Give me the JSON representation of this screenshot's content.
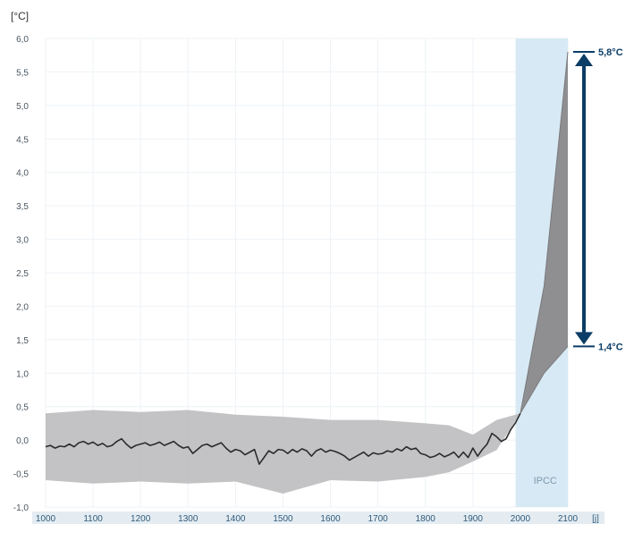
{
  "chart_data": {
    "type": "line",
    "title": "",
    "xlabel": "",
    "ylabel": "",
    "y_unit_label": "[°C]",
    "xlim": [
      1000,
      2100
    ],
    "ylim": [
      -1.0,
      6.0
    ],
    "x_ticks": [
      1000,
      1100,
      1200,
      1300,
      1400,
      1500,
      1600,
      1700,
      1800,
      1900,
      2000,
      2100
    ],
    "x_tick_labels": [
      "1000",
      "1100",
      "1200",
      "1300",
      "1400",
      "1500",
      "1600",
      "1700",
      "1800",
      "1900",
      "2000",
      "2100"
    ],
    "x_tail_label": "[j]",
    "y_ticks": [
      -1.0,
      -0.5,
      0.0,
      0.5,
      1.0,
      1.5,
      2.0,
      2.5,
      3.0,
      3.5,
      4.0,
      4.5,
      5.0,
      5.5,
      6.0
    ],
    "y_tick_labels": [
      "-1,0",
      "-0,5",
      "0,0",
      "0,5",
      "1,0",
      "1,5",
      "2,0",
      "2,5",
      "3,0",
      "3,5",
      "4,0",
      "4,5",
      "5,0",
      "5,5",
      "6,0"
    ],
    "grid": true,
    "shaded_region": {
      "x_start": 1990,
      "x_end": 2100,
      "label": "IPCC"
    },
    "series": [
      {
        "x": [
          1000,
          1010,
          1020,
          1030,
          1040,
          1050,
          1060,
          1070,
          1080,
          1090,
          1100,
          1110,
          1120,
          1130,
          1140,
          1150,
          1160,
          1170,
          1180,
          1190,
          1200,
          1210,
          1220,
          1230,
          1240,
          1250,
          1260,
          1270,
          1280,
          1290,
          1300,
          1310,
          1320,
          1330,
          1340,
          1350,
          1360,
          1370,
          1380,
          1390,
          1400,
          1410,
          1420,
          1430,
          1440,
          1450,
          1460,
          1470,
          1480,
          1490,
          1500,
          1510,
          1520,
          1530,
          1540,
          1550,
          1560,
          1570,
          1580,
          1590,
          1600,
          1610,
          1620,
          1630,
          1640,
          1650,
          1660,
          1670,
          1680,
          1690,
          1700,
          1710,
          1720,
          1730,
          1740,
          1750,
          1760,
          1770,
          1780,
          1790,
          1800,
          1810,
          1820,
          1830,
          1840,
          1850,
          1860,
          1870,
          1880,
          1890,
          1900,
          1910,
          1920,
          1930,
          1940,
          1950,
          1960,
          1970,
          1980,
          1990,
          2000
        ],
        "values": [
          -0.1,
          -0.08,
          -0.12,
          -0.09,
          -0.1,
          -0.06,
          -0.1,
          -0.04,
          -0.02,
          -0.06,
          -0.03,
          -0.08,
          -0.05,
          -0.1,
          -0.08,
          -0.02,
          0.02,
          -0.06,
          -0.12,
          -0.08,
          -0.06,
          -0.04,
          -0.08,
          -0.06,
          -0.03,
          -0.08,
          -0.05,
          -0.02,
          -0.08,
          -0.12,
          -0.1,
          -0.2,
          -0.14,
          -0.08,
          -0.06,
          -0.1,
          -0.07,
          -0.04,
          -0.12,
          -0.18,
          -0.14,
          -0.16,
          -0.22,
          -0.18,
          -0.14,
          -0.36,
          -0.26,
          -0.16,
          -0.2,
          -0.14,
          -0.15,
          -0.2,
          -0.14,
          -0.18,
          -0.13,
          -0.16,
          -0.24,
          -0.16,
          -0.13,
          -0.18,
          -0.15,
          -0.17,
          -0.2,
          -0.24,
          -0.3,
          -0.26,
          -0.22,
          -0.18,
          -0.24,
          -0.19,
          -0.21,
          -0.2,
          -0.16,
          -0.18,
          -0.13,
          -0.16,
          -0.1,
          -0.14,
          -0.12,
          -0.2,
          -0.22,
          -0.26,
          -0.24,
          -0.2,
          -0.25,
          -0.22,
          -0.18,
          -0.26,
          -0.18,
          -0.26,
          -0.12,
          -0.24,
          -0.14,
          -0.06,
          0.1,
          0.05,
          -0.02,
          0.02,
          0.16,
          0.26,
          0.4
        ]
      },
      {
        "x": [
          2000,
          2050,
          2100
        ],
        "values": [
          0.4,
          2.3,
          5.8
        ]
      },
      {
        "x": [
          2000,
          2050,
          2100
        ],
        "values": [
          0.4,
          1.0,
          1.4
        ]
      }
    ],
    "uncertainty_band": {
      "x": [
        1000,
        1100,
        1200,
        1300,
        1400,
        1500,
        1600,
        1700,
        1800,
        1850,
        1900,
        1950,
        2000
      ],
      "upper": [
        0.4,
        0.45,
        0.42,
        0.45,
        0.38,
        0.35,
        0.3,
        0.3,
        0.25,
        0.22,
        0.08,
        0.3,
        0.4
      ],
      "lower": [
        -0.6,
        -0.65,
        -0.62,
        -0.65,
        -0.62,
        -0.8,
        -0.6,
        -0.62,
        -0.55,
        -0.48,
        -0.32,
        -0.15,
        0.4
      ]
    },
    "annotations": [
      {
        "text": "5,8°C",
        "value": 5.8
      },
      {
        "text": "1,4°C",
        "value": 1.4
      }
    ]
  }
}
